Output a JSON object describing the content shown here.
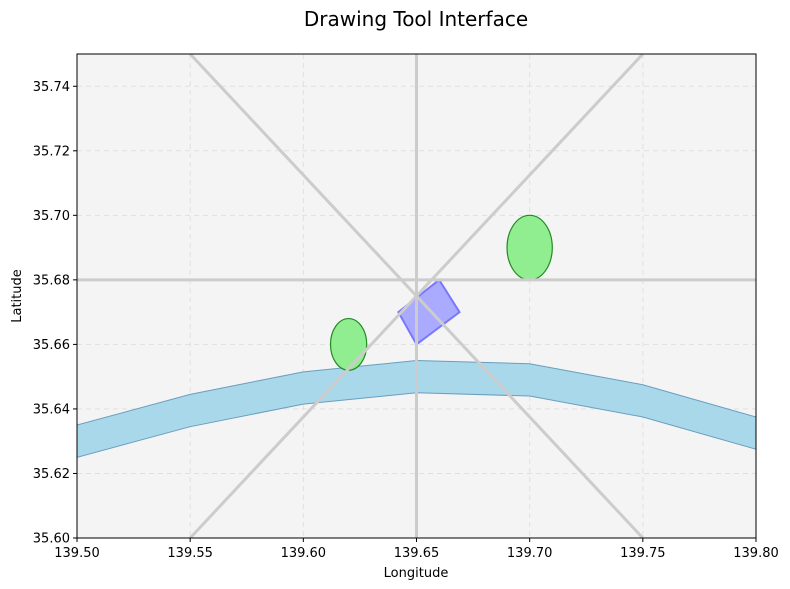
{
  "chart_data": {
    "type": "scatter",
    "title": "Drawing Tool Interface",
    "xlabel": "Longitude",
    "ylabel": "Latitude",
    "xlim": [
      139.5,
      139.8
    ],
    "ylim": [
      35.6,
      35.75
    ],
    "xticks": [
      "139.50",
      "139.55",
      "139.60",
      "139.65",
      "139.70",
      "139.75",
      "139.80"
    ],
    "yticks": [
      "35.60",
      "35.62",
      "35.64",
      "35.66",
      "35.68",
      "35.70",
      "35.72",
      "35.74"
    ],
    "grid": true,
    "background_color": "#f4f4f4",
    "guide_lines": {
      "center": [
        139.65,
        35.675
      ],
      "lines": [
        {
          "from": [
            139.65,
            35.6
          ],
          "to": [
            139.65,
            35.75
          ]
        },
        {
          "from": [
            139.5,
            35.68
          ],
          "to": [
            139.8,
            35.68
          ]
        },
        {
          "from": [
            139.55,
            35.75
          ],
          "to": [
            139.75,
            35.6
          ]
        },
        {
          "from": [
            139.55,
            35.6
          ],
          "to": [
            139.75,
            35.75
          ]
        }
      ],
      "color": "#cccccc"
    },
    "shapes": [
      {
        "kind": "band",
        "x": [
          139.5,
          139.55,
          139.6,
          139.65,
          139.7,
          139.75,
          139.8
        ],
        "y_upper": [
          35.635,
          35.6445,
          35.6515,
          35.655,
          35.654,
          35.6475,
          35.6375
        ],
        "y_lower": [
          35.625,
          35.6345,
          35.6415,
          35.645,
          35.644,
          35.6375,
          35.6275
        ],
        "fill": "#a8d8ea",
        "stroke": "#6a9ec0"
      },
      {
        "kind": "ellipse",
        "center": [
          139.62,
          35.66
        ],
        "rx": 0.008,
        "ry": 0.008,
        "fill": "#90ee90",
        "stroke": "#228b22"
      },
      {
        "kind": "ellipse",
        "center": [
          139.7,
          35.69
        ],
        "rx": 0.01,
        "ry": 0.01,
        "fill": "#90ee90",
        "stroke": "#228b22"
      },
      {
        "kind": "polygon",
        "points": [
          [
            139.642,
            35.67
          ],
          [
            139.65,
            35.66
          ],
          [
            139.669,
            35.67
          ],
          [
            139.66,
            35.68
          ]
        ],
        "fill": "#aaaaff",
        "stroke": "#7777ff"
      }
    ]
  }
}
